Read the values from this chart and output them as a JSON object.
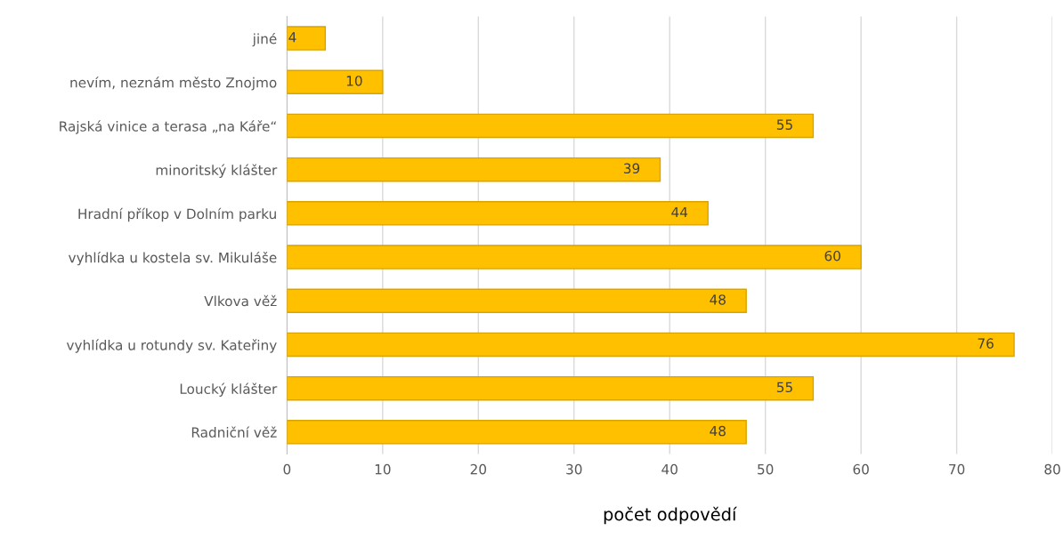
{
  "chart_data": {
    "type": "bar",
    "orientation": "horizontal",
    "xlabel": "počet odpovědí",
    "categories": [
      "jiné",
      "nevím, neznám město Znojmo",
      "Rajská vinice a terasa „na Káře“",
      "minoritský klášter",
      "Hradní příkop v Dolním parku",
      "vyhlídka u kostela sv. Mikuláše",
      "Vlkova věž",
      "vyhlídka u rotundy sv. Kateřiny",
      "Loucký klášter",
      "Radniční věž"
    ],
    "values": [
      4,
      10,
      55,
      39,
      44,
      60,
      48,
      76,
      55,
      48
    ],
    "color": "#ffc000",
    "xlim": [
      0,
      80
    ],
    "xticks": [
      0,
      10,
      20,
      30,
      40,
      50,
      60,
      70,
      80
    ],
    "grid": "x",
    "data_labels": true
  }
}
